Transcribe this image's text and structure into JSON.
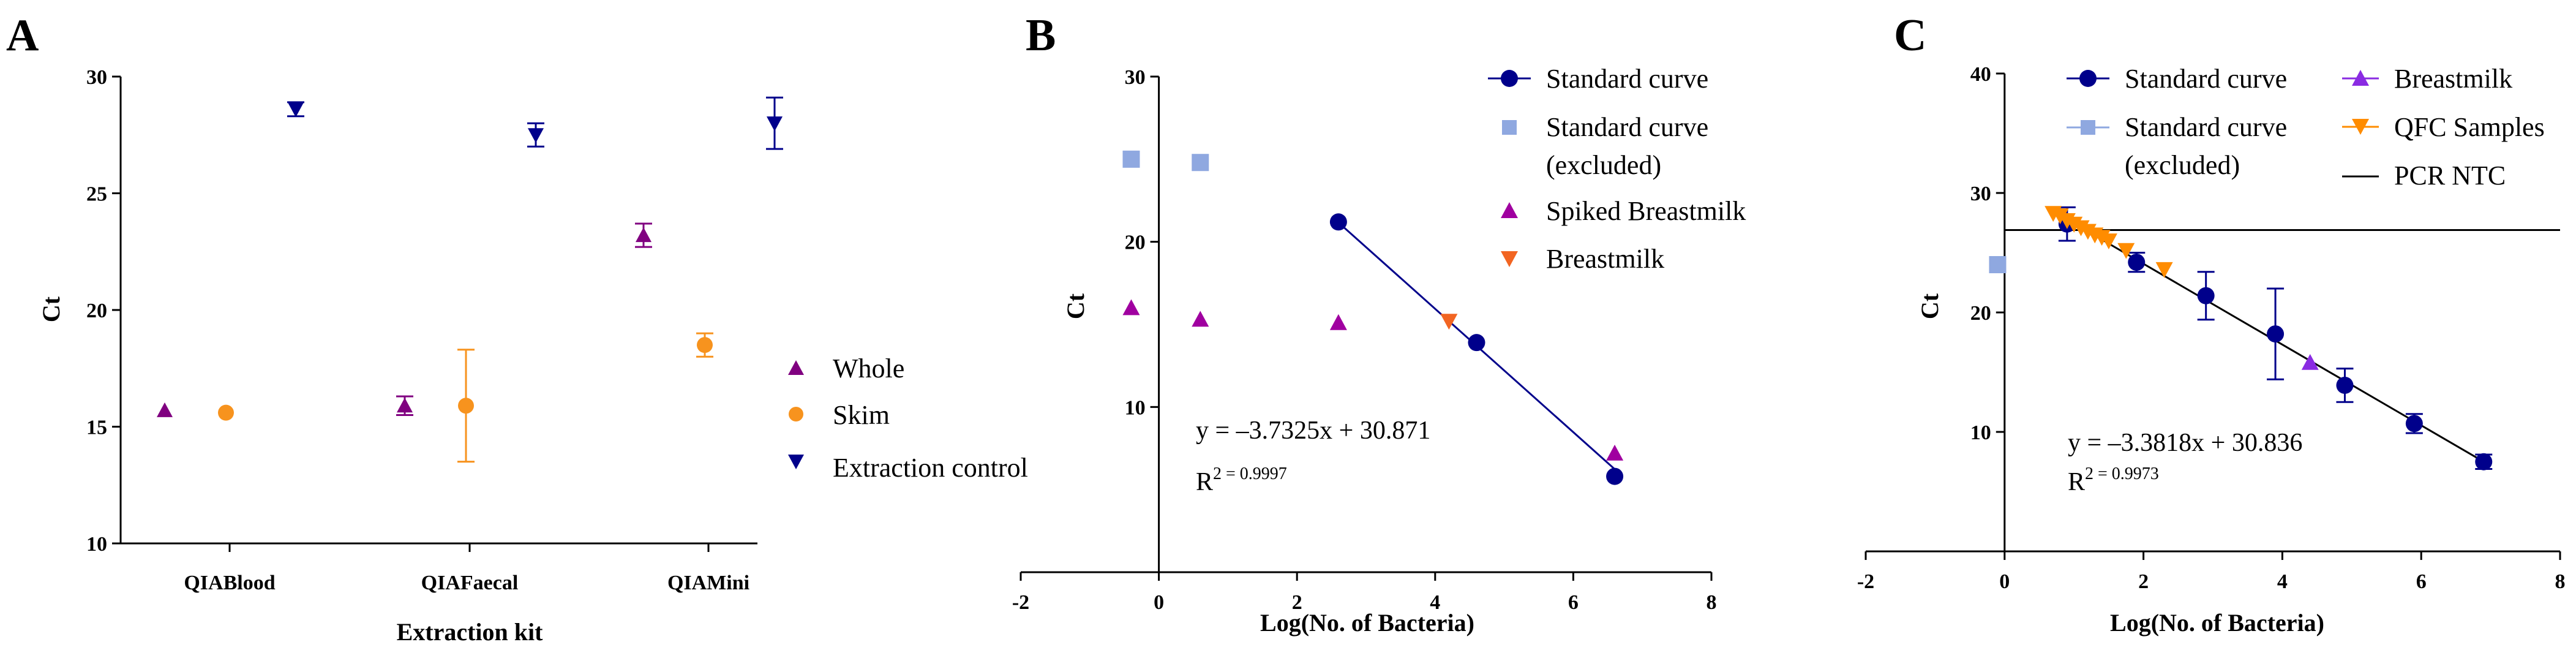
{
  "panels": {
    "A": {
      "letter": "A"
    },
    "B": {
      "letter": "B"
    },
    "C": {
      "letter": "C"
    }
  },
  "chart_data": [
    {
      "panel": "A",
      "type": "scatter",
      "title": "",
      "xlabel": "Extraction kit",
      "ylabel": "Ct",
      "ylim": [
        10,
        30
      ],
      "yticks": [
        10,
        15,
        20,
        25,
        30
      ],
      "categories": [
        "QIABlood",
        "QIAFaecal",
        "QIAMini"
      ],
      "series": [
        {
          "name": "Whole",
          "marker": "triangle-up",
          "color": "#800080",
          "values": [
            15.7,
            15.9,
            23.2
          ],
          "errors": [
            0,
            0.4,
            0.5
          ]
        },
        {
          "name": "Skim",
          "marker": "circle",
          "color": "#F7931E",
          "values": [
            15.6,
            15.9,
            18.5
          ],
          "errors": [
            0,
            2.4,
            0.5
          ]
        },
        {
          "name": "Extraction control",
          "marker": "triangle-down",
          "color": "#00008B",
          "values": [
            28.6,
            27.5,
            28.0
          ],
          "errors": [
            0.3,
            0.5,
            1.1
          ]
        }
      ],
      "legend_position": "right"
    },
    {
      "panel": "B",
      "type": "scatter",
      "title": "",
      "xlabel": "Log(No. of Bacteria)",
      "ylabel": "Ct",
      "xlim": [
        -2,
        8
      ],
      "ylim": [
        0,
        30
      ],
      "xticks": [
        -2,
        0,
        2,
        4,
        6,
        8
      ],
      "yticks": [
        10,
        20,
        30
      ],
      "series": [
        {
          "name": "Standard curve",
          "marker": "circle",
          "color": "#00008B",
          "points": [
            [
              2.6,
              21.2
            ],
            [
              4.6,
              13.9
            ],
            [
              6.6,
              5.8
            ]
          ]
        },
        {
          "name": "Standard curve",
          "name2": "(excluded)",
          "marker": "square",
          "color": "#8FA8E0",
          "points": [
            [
              -0.4,
              25.0
            ],
            [
              0.6,
              24.8
            ]
          ]
        },
        {
          "name": "Spiked Breastmilk",
          "marker": "triangle-up",
          "color": "#A000A0",
          "points": [
            [
              -0.4,
              16.0
            ],
            [
              0.6,
              15.3
            ],
            [
              2.6,
              15.1
            ],
            [
              6.6,
              7.2
            ]
          ]
        },
        {
          "name": "Breastmilk",
          "marker": "triangle-down",
          "color": "#F26522",
          "points": [
            [
              4.2,
              15.2
            ]
          ]
        }
      ],
      "fit_line": {
        "x": [
          2.6,
          6.6
        ],
        "color": "#00008B",
        "equation": "y = –3.7325x + 30.871",
        "r2_label": "R",
        "r2_value": "2 = 0.9997"
      },
      "legend_position": "top-right"
    },
    {
      "panel": "C",
      "type": "scatter",
      "title": "",
      "xlabel": "Log(No. of Bacteria)",
      "ylabel": "Ct",
      "xlim": [
        -2,
        8
      ],
      "ylim": [
        0,
        40
      ],
      "xticks": [
        -2,
        0,
        2,
        4,
        6,
        8
      ],
      "yticks": [
        10,
        20,
        30,
        40
      ],
      "series": [
        {
          "name": "Standard curve",
          "marker": "circle",
          "color": "#00008B",
          "points": [
            [
              0.9,
              27.4
            ],
            [
              1.9,
              24.2
            ],
            [
              2.9,
              21.4
            ],
            [
              3.9,
              18.2
            ],
            [
              4.9,
              13.9
            ],
            [
              5.9,
              10.7
            ],
            [
              6.9,
              7.5
            ]
          ],
          "errors": [
            1.4,
            0.8,
            2.0,
            3.8,
            1.4,
            0.8,
            0.6
          ]
        },
        {
          "name": "Standard curve",
          "name2": "(excluded)",
          "marker": "square",
          "color": "#8FA8E0",
          "points": [
            [
              -0.1,
              24.0
            ]
          ]
        },
        {
          "name": "Breastmilk",
          "marker": "triangle-up",
          "color": "#8A2BE2",
          "points": [
            [
              4.4,
              15.8
            ]
          ]
        },
        {
          "name": "QFC Samples",
          "marker": "triangle-down",
          "color": "#FF8C00",
          "points": [
            [
              0.7,
              28.3
            ],
            [
              0.8,
              28.1
            ],
            [
              0.9,
              27.7
            ],
            [
              1.0,
              27.4
            ],
            [
              1.1,
              27.1
            ],
            [
              1.2,
              26.8
            ],
            [
              1.3,
              26.5
            ],
            [
              1.4,
              26.3
            ],
            [
              1.5,
              26.0
            ],
            [
              1.75,
              25.2
            ],
            [
              2.3,
              23.6
            ]
          ]
        }
      ],
      "ntc": {
        "name": "PCR NTC",
        "y": 26.9,
        "color": "#000000"
      },
      "fit_line": {
        "x": [
          0.9,
          6.9
        ],
        "color": "#000000",
        "equation": "y = –3.3818x + 30.836",
        "r2_label": "R",
        "r2_value": "2 = 0.9973"
      },
      "legend_position": "top"
    }
  ]
}
